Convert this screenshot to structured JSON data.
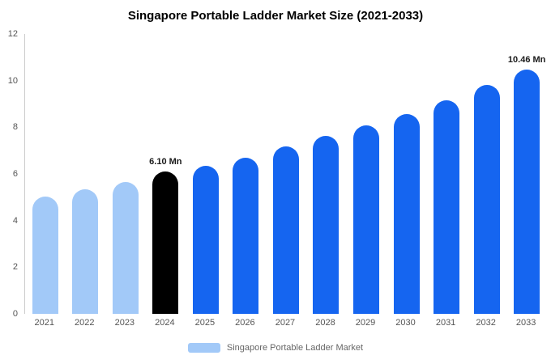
{
  "title": "Singapore Portable Ladder Market Size (2021-2033)",
  "legend": {
    "label": "Singapore Portable Ladder Market",
    "swatch_color": "#a2c9f8"
  },
  "colors": {
    "light_blue": "#a2c9f8",
    "accent_blue": "#1565f0",
    "highlight_black": "#000000",
    "axis_line": "#cccccc",
    "tick_text": "#555555"
  },
  "chart_data": {
    "type": "bar",
    "title": "Singapore Portable Ladder Market Size (2021-2033)",
    "xlabel": "",
    "ylabel": "",
    "categories": [
      "2021",
      "2022",
      "2023",
      "2024",
      "2025",
      "2026",
      "2027",
      "2028",
      "2029",
      "2030",
      "2031",
      "2032",
      "2033"
    ],
    "values": [
      5.03,
      5.35,
      5.65,
      6.1,
      6.35,
      6.7,
      7.18,
      7.63,
      8.08,
      8.57,
      9.15,
      9.8,
      10.46
    ],
    "bar_colors": [
      "#a2c9f8",
      "#a2c9f8",
      "#a2c9f8",
      "#000000",
      "#1565f0",
      "#1565f0",
      "#1565f0",
      "#1565f0",
      "#1565f0",
      "#1565f0",
      "#1565f0",
      "#1565f0",
      "#1565f0"
    ],
    "annotations": [
      {
        "index": 3,
        "label": "6.10 Mn"
      },
      {
        "index": 12,
        "label": "10.46 Mn"
      }
    ],
    "ylim": [
      0,
      12
    ],
    "yticks": [
      0,
      2,
      4,
      6,
      8,
      10,
      12
    ],
    "grid": false,
    "legend_position": "bottom",
    "legend_entries": [
      "Singapore Portable Ladder Market"
    ]
  }
}
